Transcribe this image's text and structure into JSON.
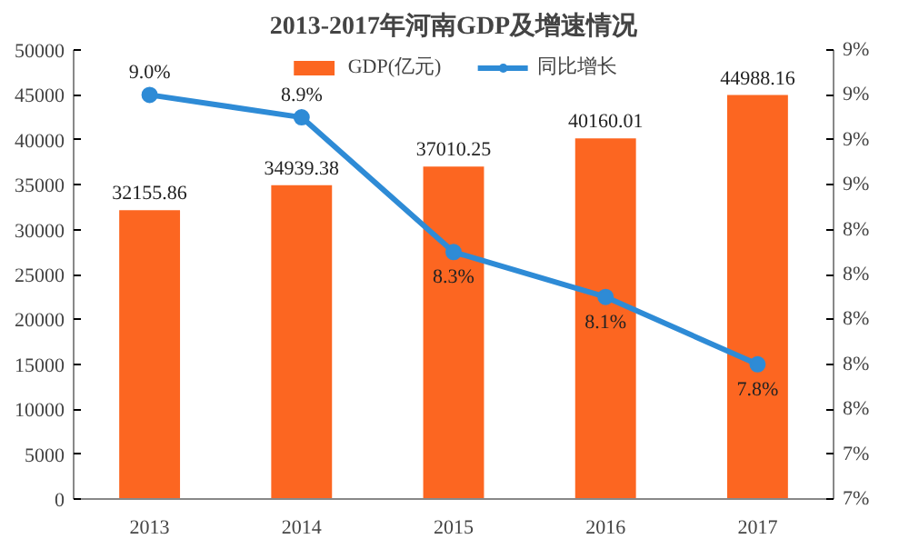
{
  "chart_data": {
    "type": "bar",
    "title": "2013-2017年河南GDP及增速情况",
    "categories": [
      "2013",
      "2014",
      "2015",
      "2016",
      "2017"
    ],
    "series": [
      {
        "name": "GDP(亿元)",
        "color": "#fc6621",
        "values": [
          32155.86,
          34939.38,
          37010.25,
          40160.01,
          44988.16
        ],
        "value_labels": [
          "32155.86",
          "34939.38",
          "37010.25",
          "40160.01",
          "44988.16"
        ]
      },
      {
        "name": "同比增长",
        "type": "line",
        "axis": "y2",
        "color": "#2e8bd6",
        "values": [
          9.0,
          8.9,
          8.3,
          8.1,
          7.8
        ],
        "value_labels": [
          "9.0%",
          "8.9%",
          "8.3%",
          "8.1%",
          "7.8%"
        ]
      }
    ],
    "ylim": [
      0,
      50000
    ],
    "yticks": [
      0,
      5000,
      10000,
      15000,
      20000,
      25000,
      30000,
      35000,
      40000,
      45000,
      50000
    ],
    "y2lim": [
      7.2,
      9.2
    ],
    "y2ticks": [
      {
        "value": 7.2,
        "label": "7%"
      },
      {
        "value": 7.4,
        "label": "7%"
      },
      {
        "value": 7.6,
        "label": "8%"
      },
      {
        "value": 7.8,
        "label": "8%"
      },
      {
        "value": 8.0,
        "label": "8%"
      },
      {
        "value": 8.2,
        "label": "8%"
      },
      {
        "value": 8.4,
        "label": "8%"
      },
      {
        "value": 8.6,
        "label": "9%"
      },
      {
        "value": 8.8,
        "label": "9%"
      },
      {
        "value": 9.0,
        "label": "9%"
      },
      {
        "value": 9.2,
        "label": "9%"
      }
    ],
    "legend": "top",
    "marker": "circle",
    "line_style": "solid"
  }
}
